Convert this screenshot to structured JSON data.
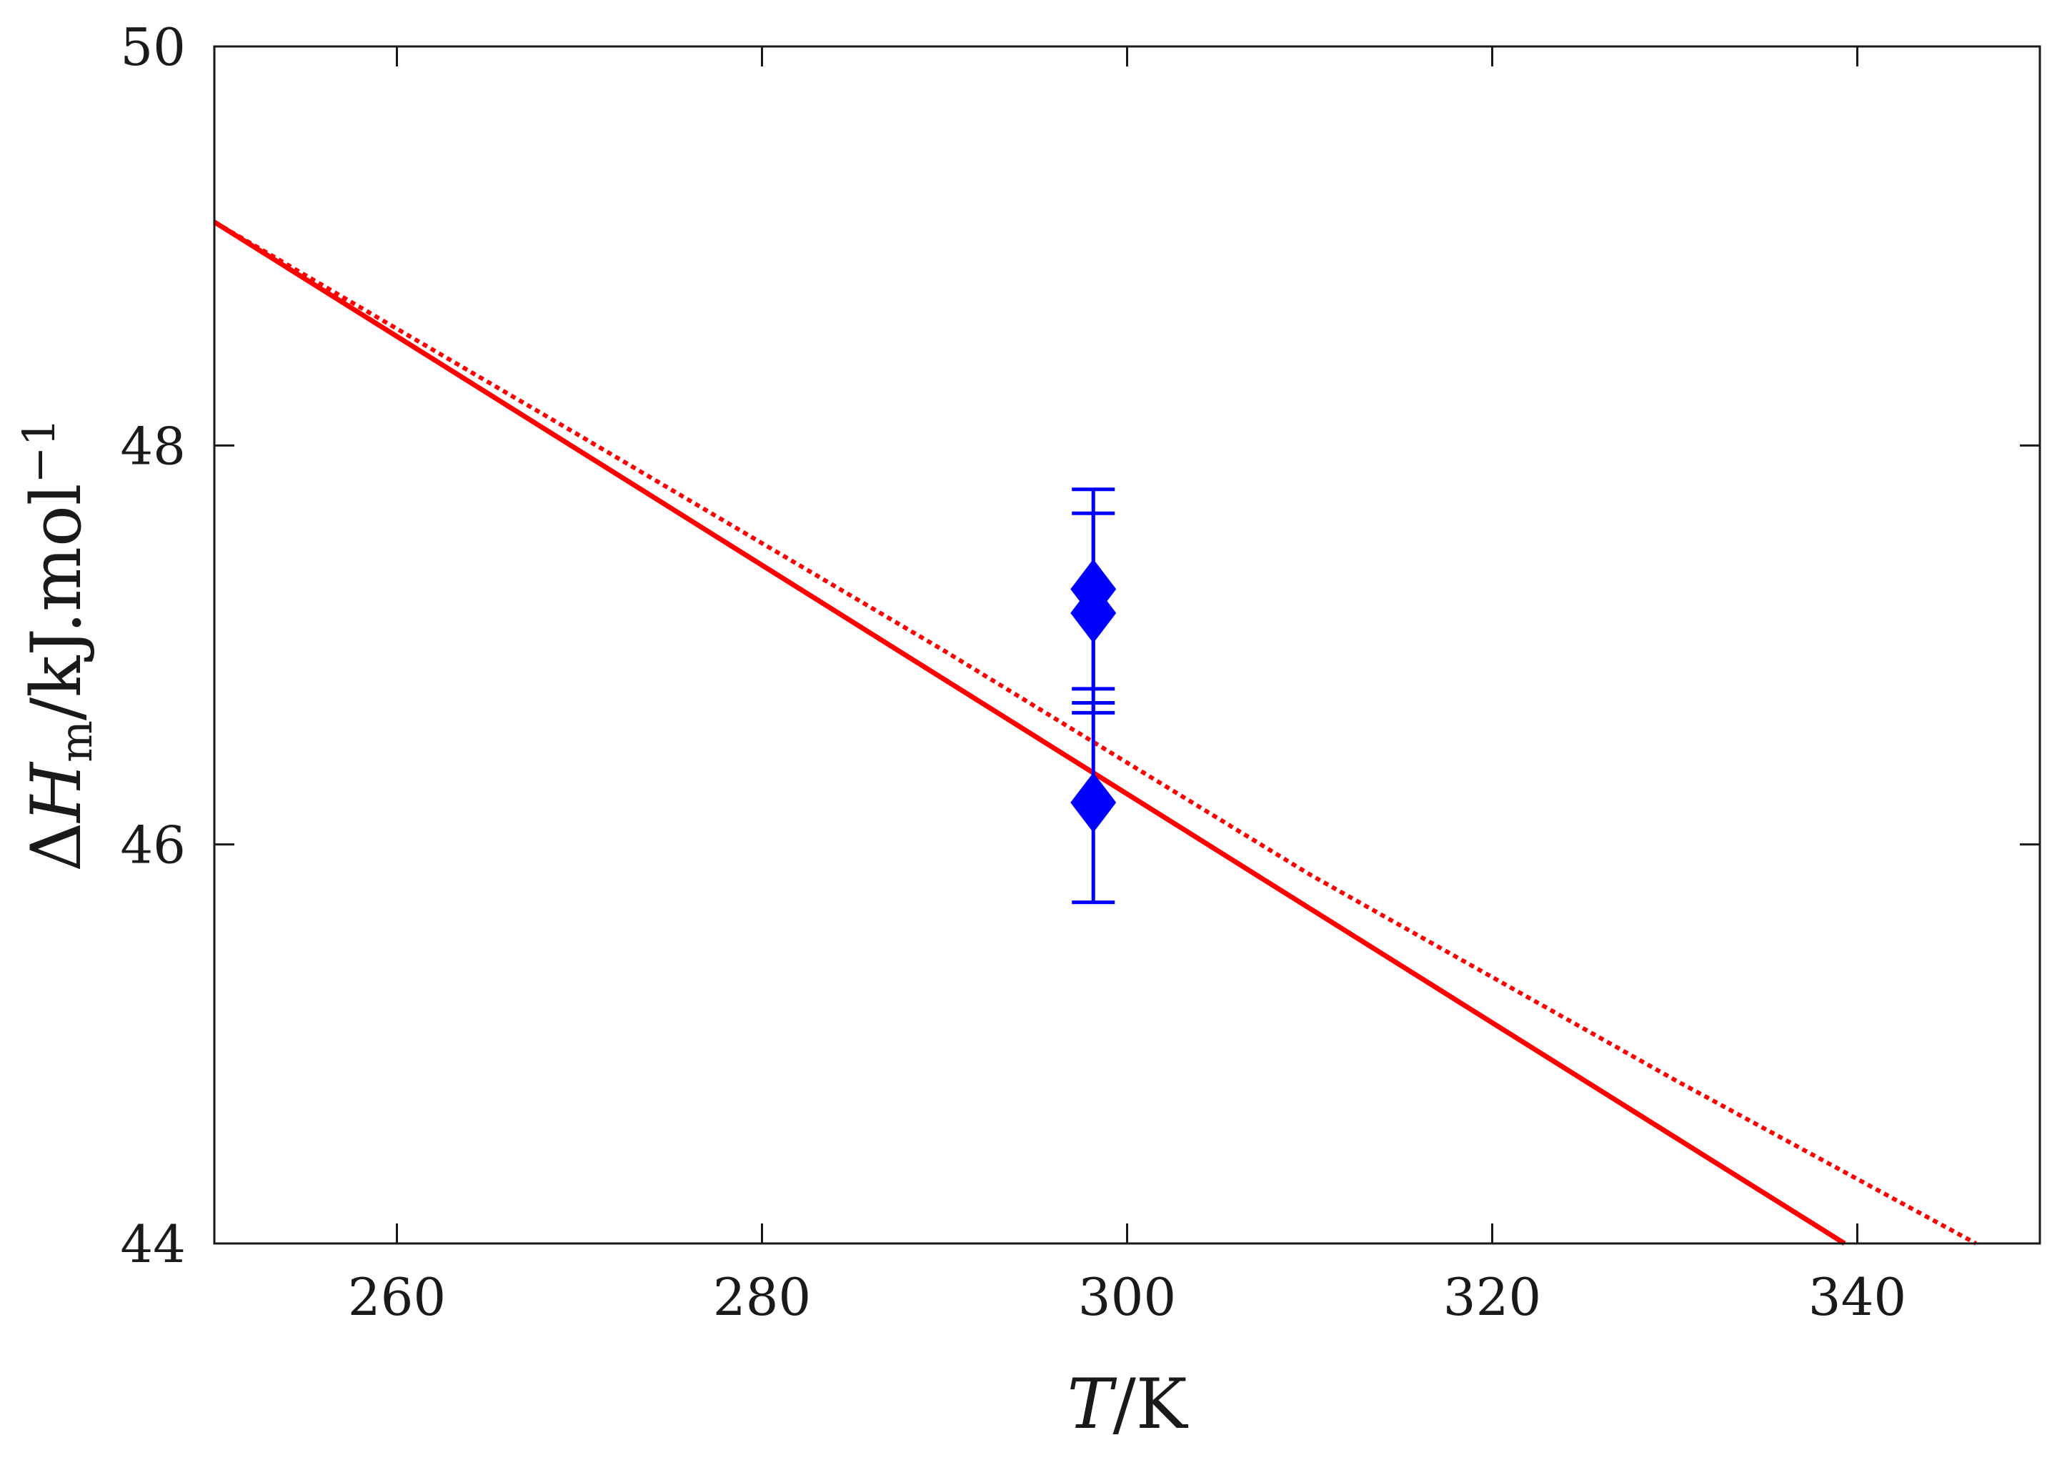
{
  "chart_data": {
    "type": "line",
    "title": "",
    "xlabel": {
      "italic": "T",
      "rest": "/K"
    },
    "ylabel": {
      "delta": "Δ",
      "italic": "H",
      "subscript": "m",
      "rest": "/kJ.mol",
      "superscript": "−1"
    },
    "xlim": [
      250,
      350
    ],
    "ylim": [
      44,
      50
    ],
    "x_ticks": [
      260,
      280,
      300,
      320,
      340
    ],
    "y_ticks": [
      44,
      46,
      48,
      50
    ],
    "grid": false,
    "legend": "none",
    "series": [
      {
        "style": "solid",
        "color": "#ff0000",
        "x": [
          250,
          339.3
        ],
        "y": [
          49.12,
          44.0
        ]
      },
      {
        "style": "dotted",
        "color": "#ff0000",
        "x": [
          250,
          270,
          290,
          310,
          330,
          346.5
        ],
        "y": [
          49.12,
          48.05,
          46.97,
          45.85,
          44.82,
          44.0
        ]
      }
    ],
    "points": {
      "color": "#0000ff",
      "marker": "diamond",
      "data": [
        {
          "x": 298.15,
          "y": 47.28,
          "err": 0.5
        },
        {
          "x": 298.15,
          "y": 47.16,
          "err": 0.5
        },
        {
          "x": 298.15,
          "y": 46.21,
          "err": 0.5
        }
      ]
    }
  }
}
